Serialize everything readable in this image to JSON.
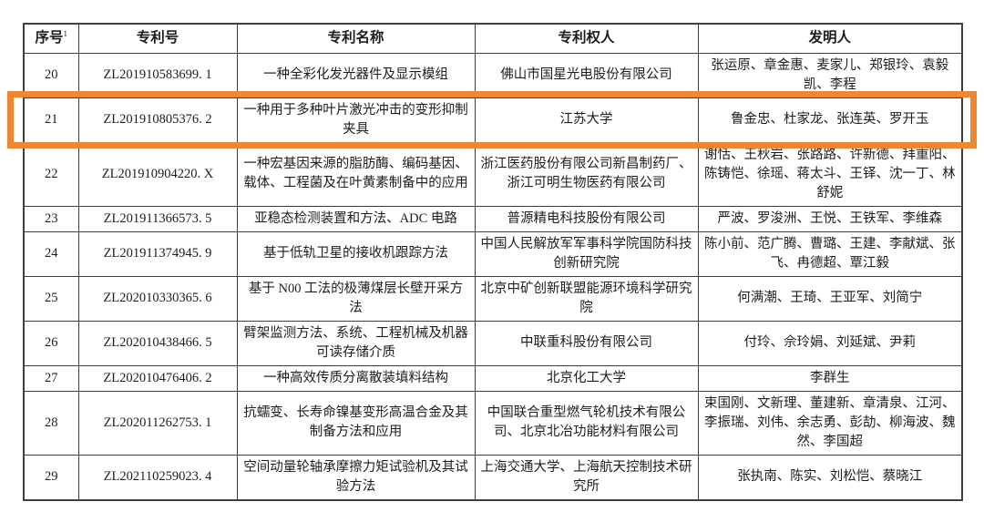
{
  "table": {
    "highlight_color": "#ED8733",
    "headers": [
      {
        "label": "序号",
        "sup": "1"
      },
      {
        "label": "专利号",
        "sup": ""
      },
      {
        "label": "专利名称",
        "sup": ""
      },
      {
        "label": "专利权人",
        "sup": ""
      },
      {
        "label": "发明人",
        "sup": ""
      }
    ],
    "rows": [
      {
        "no": "20",
        "patent_no": "ZL201910583699. 1",
        "title": "一种全彩化发光器件及显示模组",
        "assignee": "佛山市国星光电股份有限公司",
        "inventors": "张运原、章金惠、麦家儿、郑银玲、袁毅凯、李程",
        "highlighted": false
      },
      {
        "no": "21",
        "patent_no": "ZL201910805376. 2",
        "title": "一种用于多种叶片激光冲击的变形抑制夹具",
        "assignee": "江苏大学",
        "inventors": "鲁金忠、杜家龙、张连英、罗开玉",
        "highlighted": true
      },
      {
        "no": "22",
        "patent_no": "ZL201910904220. X",
        "title": "一种宏基因来源的脂肪酶、编码基因、载体、工程菌及在叶黄素制备中的应用",
        "assignee": "浙江医药股份有限公司新昌制药厂、浙江可明生物医药有限公司",
        "inventors": "谢恬、王秋岩、张路路、许新德、拜重阳、陈铸恺、徐瑶、蒋太斗、王铎、沈一丁、林舒妮",
        "highlighted": false
      },
      {
        "no": "23",
        "patent_no": "ZL201911366573. 5",
        "title": "亚稳态检测装置和方法、ADC 电路",
        "assignee": "普源精电科技股份有限公司",
        "inventors": "严波、罗浚洲、王悦、王铁军、李维森",
        "highlighted": false
      },
      {
        "no": "24",
        "patent_no": "ZL201911374945. 9",
        "title": "基于低轨卫星的接收机跟踪方法",
        "assignee": "中国人民解放军军事科学院国防科技创新研究院",
        "inventors": "陈小前、范广腾、曹璐、王建、李献斌、张飞、冉德超、覃江毅",
        "highlighted": false
      },
      {
        "no": "25",
        "patent_no": "ZL202010330365. 6",
        "title": "基于 N00 工法的极薄煤层长壁开采方法",
        "assignee": "北京中矿创新联盟能源环境科学研究院",
        "inventors": "何满潮、王琦、王亚军、刘简宁",
        "highlighted": false
      },
      {
        "no": "26",
        "patent_no": "ZL202010438466. 5",
        "title": "臂架监测方法、系统、工程机械及机器可读存储介质",
        "assignee": "中联重科股份有限公司",
        "inventors": "付玲、佘玲娟、刘延斌、尹莉",
        "highlighted": false
      },
      {
        "no": "27",
        "patent_no": "ZL202010476406. 2",
        "title": "一种高效传质分离散装填料结构",
        "assignee": "北京化工大学",
        "inventors": "李群生",
        "highlighted": false
      },
      {
        "no": "28",
        "patent_no": "ZL202011262753. 1",
        "title": "抗蠕变、长寿命镍基变形高温合金及其制备方法和应用",
        "assignee": "中国联合重型燃气轮机技术有限公司、北京北冶功能材料有限公司",
        "inventors": "束国刚、文新理、董建新、章清泉、江河、李振瑞、刘伟、余志勇、彭劼、柳海波、魏然、李国超",
        "highlighted": false
      },
      {
        "no": "29",
        "patent_no": "ZL202110259023. 4",
        "title": "空间动量轮轴承摩擦力矩试验机及其试验方法",
        "assignee": "上海交通大学、上海航天控制技术研究所",
        "inventors": "张执南、陈实、刘松恺、蔡晓江",
        "highlighted": false
      }
    ]
  }
}
